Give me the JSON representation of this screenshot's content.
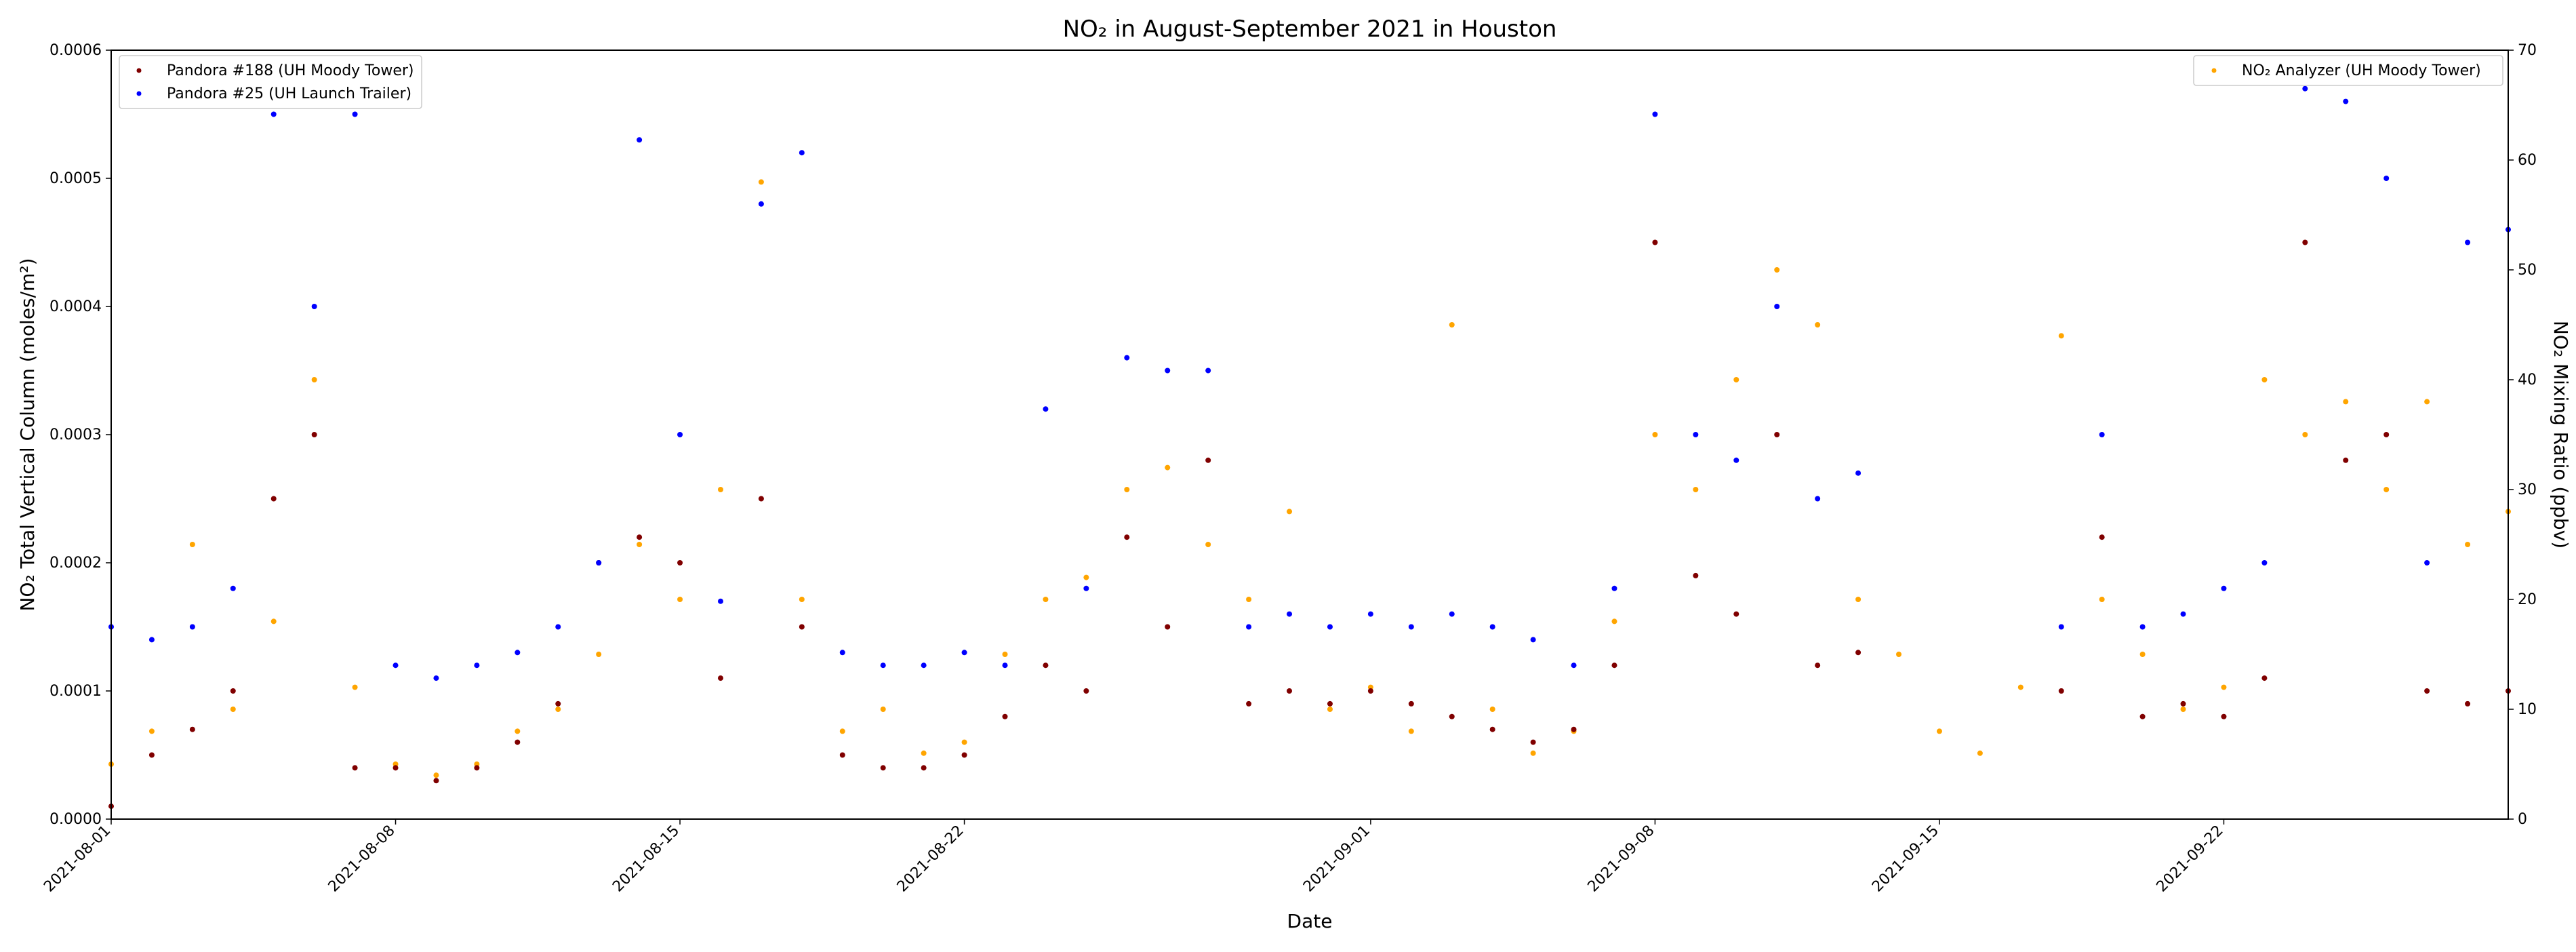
{
  "chart_data": {
    "type": "scatter",
    "title": "NO₂ in August-September 2021 in Houston",
    "xlabel": "Date",
    "ylabel_left": "NO₂ Total Vertical Column (moles/m²)",
    "ylabel_right": "NO₂ Mixing Ratio (ppbv)",
    "x_range": [
      "2021-08-01",
      "2021-09-29"
    ],
    "x_ticks": [
      "2021-08-01",
      "2021-08-08",
      "2021-08-15",
      "2021-08-22",
      "2021-09-01",
      "2021-09-08",
      "2021-09-15",
      "2021-09-22"
    ],
    "ylim_left": [
      0,
      0.0006
    ],
    "yticks_left": [
      "0.0000",
      "0.0001",
      "0.0002",
      "0.0003",
      "0.0004",
      "0.0005",
      "0.0006"
    ],
    "ylim_right": [
      0,
      70
    ],
    "yticks_right": [
      "0",
      "10",
      "20",
      "30",
      "40",
      "50",
      "60",
      "70"
    ],
    "legend_left_position": "upper-left",
    "legend_right_position": "upper-right",
    "grid": false,
    "series": [
      {
        "name": "Pandora #188 (UH Moody Tower)",
        "axis": "left",
        "color": "#800000",
        "points": [
          [
            "2021-08-01",
            1e-05
          ],
          [
            "2021-08-02",
            5e-05
          ],
          [
            "2021-08-03",
            7e-05
          ],
          [
            "2021-08-04",
            0.0001
          ],
          [
            "2021-08-05",
            0.00025
          ],
          [
            "2021-08-06",
            0.0003
          ],
          [
            "2021-08-07",
            4e-05
          ],
          [
            "2021-08-08",
            4e-05
          ],
          [
            "2021-08-09",
            3e-05
          ],
          [
            "2021-08-10",
            4e-05
          ],
          [
            "2021-08-11",
            6e-05
          ],
          [
            "2021-08-12",
            9e-05
          ],
          [
            "2021-08-13",
            0.0002
          ],
          [
            "2021-08-14",
            0.00022
          ],
          [
            "2021-08-15",
            0.0002
          ],
          [
            "2021-08-16",
            0.00011
          ],
          [
            "2021-08-17",
            0.00025
          ],
          [
            "2021-08-18",
            0.00015
          ],
          [
            "2021-08-19",
            5e-05
          ],
          [
            "2021-08-20",
            4e-05
          ],
          [
            "2021-08-21",
            4e-05
          ],
          [
            "2021-08-22",
            5e-05
          ],
          [
            "2021-08-23",
            8e-05
          ],
          [
            "2021-08-24",
            0.00012
          ],
          [
            "2021-08-25",
            0.0001
          ],
          [
            "2021-08-26",
            0.00022
          ],
          [
            "2021-08-27",
            0.00015
          ],
          [
            "2021-08-28",
            0.00028
          ],
          [
            "2021-08-29",
            9e-05
          ],
          [
            "2021-08-30",
            0.0001
          ],
          [
            "2021-08-31",
            9e-05
          ],
          [
            "2021-09-01",
            0.0001
          ],
          [
            "2021-09-02",
            9e-05
          ],
          [
            "2021-09-03",
            8e-05
          ],
          [
            "2021-09-04",
            7e-05
          ],
          [
            "2021-09-05",
            6e-05
          ],
          [
            "2021-09-06",
            7e-05
          ],
          [
            "2021-09-07",
            0.00012
          ],
          [
            "2021-09-08",
            0.00045
          ],
          [
            "2021-09-09",
            0.00019
          ],
          [
            "2021-09-10",
            0.00016
          ],
          [
            "2021-09-11",
            0.0003
          ],
          [
            "2021-09-12",
            0.00012
          ],
          [
            "2021-09-13",
            0.00013
          ],
          [
            "2021-09-18",
            0.0001
          ],
          [
            "2021-09-19",
            0.00022
          ],
          [
            "2021-09-20",
            8e-05
          ],
          [
            "2021-09-21",
            9e-05
          ],
          [
            "2021-09-22",
            8e-05
          ],
          [
            "2021-09-23",
            0.00011
          ],
          [
            "2021-09-24",
            0.00045
          ],
          [
            "2021-09-25",
            0.00028
          ],
          [
            "2021-09-26",
            0.0003
          ],
          [
            "2021-09-27",
            0.0001
          ],
          [
            "2021-09-28",
            9e-05
          ],
          [
            "2021-09-29",
            0.0001
          ]
        ]
      },
      {
        "name": "Pandora #25 (UH Launch Trailer)",
        "axis": "left",
        "color": "#0000ff",
        "points": [
          [
            "2021-08-01",
            0.00015
          ],
          [
            "2021-08-02",
            0.00014
          ],
          [
            "2021-08-03",
            0.00015
          ],
          [
            "2021-08-04",
            0.00018
          ],
          [
            "2021-08-05",
            0.00055
          ],
          [
            "2021-08-06",
            0.0004
          ],
          [
            "2021-08-07",
            0.00055
          ],
          [
            "2021-08-08",
            0.00012
          ],
          [
            "2021-08-09",
            0.00011
          ],
          [
            "2021-08-10",
            0.00012
          ],
          [
            "2021-08-11",
            0.00013
          ],
          [
            "2021-08-12",
            0.00015
          ],
          [
            "2021-08-13",
            0.0002
          ],
          [
            "2021-08-14",
            0.00053
          ],
          [
            "2021-08-15",
            0.0003
          ],
          [
            "2021-08-16",
            0.00017
          ],
          [
            "2021-08-17",
            0.00048
          ],
          [
            "2021-08-18",
            0.00052
          ],
          [
            "2021-08-19",
            0.00013
          ],
          [
            "2021-08-20",
            0.00012
          ],
          [
            "2021-08-21",
            0.00012
          ],
          [
            "2021-08-22",
            0.00013
          ],
          [
            "2021-08-23",
            0.00012
          ],
          [
            "2021-08-24",
            0.00032
          ],
          [
            "2021-08-25",
            0.00018
          ],
          [
            "2021-08-26",
            0.00036
          ],
          [
            "2021-08-27",
            0.00035
          ],
          [
            "2021-08-28",
            0.00035
          ],
          [
            "2021-08-29",
            0.00015
          ],
          [
            "2021-08-30",
            0.00016
          ],
          [
            "2021-08-31",
            0.00015
          ],
          [
            "2021-09-01",
            0.00016
          ],
          [
            "2021-09-02",
            0.00015
          ],
          [
            "2021-09-03",
            0.00016
          ],
          [
            "2021-09-04",
            0.00015
          ],
          [
            "2021-09-05",
            0.00014
          ],
          [
            "2021-09-06",
            0.00012
          ],
          [
            "2021-09-07",
            0.00018
          ],
          [
            "2021-09-08",
            0.00055
          ],
          [
            "2021-09-09",
            0.0003
          ],
          [
            "2021-09-10",
            0.00028
          ],
          [
            "2021-09-11",
            0.0004
          ],
          [
            "2021-09-12",
            0.00025
          ],
          [
            "2021-09-13",
            0.00027
          ],
          [
            "2021-09-18",
            0.00015
          ],
          [
            "2021-09-19",
            0.0003
          ],
          [
            "2021-09-20",
            0.00015
          ],
          [
            "2021-09-21",
            0.00016
          ],
          [
            "2021-09-22",
            0.00018
          ],
          [
            "2021-09-23",
            0.0002
          ],
          [
            "2021-09-24",
            0.00057
          ],
          [
            "2021-09-25",
            0.00056
          ],
          [
            "2021-09-26",
            0.0005
          ],
          [
            "2021-09-27",
            0.0002
          ],
          [
            "2021-09-28",
            0.00045
          ],
          [
            "2021-09-29",
            0.00046
          ]
        ]
      },
      {
        "name": "NO₂ Analyzer (UH Moody Tower)",
        "axis": "right",
        "color": "#ffa500",
        "points": [
          [
            "2021-08-01",
            5
          ],
          [
            "2021-08-02",
            8
          ],
          [
            "2021-08-03",
            25
          ],
          [
            "2021-08-04",
            10
          ],
          [
            "2021-08-05",
            18
          ],
          [
            "2021-08-06",
            40
          ],
          [
            "2021-08-07",
            12
          ],
          [
            "2021-08-08",
            5
          ],
          [
            "2021-08-09",
            4
          ],
          [
            "2021-08-10",
            5
          ],
          [
            "2021-08-11",
            8
          ],
          [
            "2021-08-12",
            10
          ],
          [
            "2021-08-13",
            15
          ],
          [
            "2021-08-14",
            25
          ],
          [
            "2021-08-15",
            20
          ],
          [
            "2021-08-16",
            30
          ],
          [
            "2021-08-17",
            58
          ],
          [
            "2021-08-18",
            20
          ],
          [
            "2021-08-19",
            8
          ],
          [
            "2021-08-20",
            10
          ],
          [
            "2021-08-21",
            6
          ],
          [
            "2021-08-22",
            7
          ],
          [
            "2021-08-23",
            15
          ],
          [
            "2021-08-24",
            20
          ],
          [
            "2021-08-25",
            22
          ],
          [
            "2021-08-26",
            30
          ],
          [
            "2021-08-27",
            32
          ],
          [
            "2021-08-28",
            25
          ],
          [
            "2021-08-29",
            20
          ],
          [
            "2021-08-30",
            28
          ],
          [
            "2021-08-31",
            10
          ],
          [
            "2021-09-01",
            12
          ],
          [
            "2021-09-02",
            8
          ],
          [
            "2021-09-03",
            45
          ],
          [
            "2021-09-04",
            10
          ],
          [
            "2021-09-05",
            6
          ],
          [
            "2021-09-06",
            8
          ],
          [
            "2021-09-07",
            18
          ],
          [
            "2021-09-08",
            35
          ],
          [
            "2021-09-09",
            30
          ],
          [
            "2021-09-10",
            40
          ],
          [
            "2021-09-11",
            50
          ],
          [
            "2021-09-12",
            45
          ],
          [
            "2021-09-13",
            20
          ],
          [
            "2021-09-14",
            15
          ],
          [
            "2021-09-15",
            8
          ],
          [
            "2021-09-16",
            6
          ],
          [
            "2021-09-17",
            12
          ],
          [
            "2021-09-18",
            44
          ],
          [
            "2021-09-19",
            20
          ],
          [
            "2021-09-20",
            15
          ],
          [
            "2021-09-21",
            10
          ],
          [
            "2021-09-22",
            12
          ],
          [
            "2021-09-23",
            40
          ],
          [
            "2021-09-24",
            35
          ],
          [
            "2021-09-25",
            38
          ],
          [
            "2021-09-26",
            30
          ],
          [
            "2021-09-27",
            38
          ],
          [
            "2021-09-28",
            25
          ],
          [
            "2021-09-29",
            28
          ]
        ]
      }
    ]
  }
}
